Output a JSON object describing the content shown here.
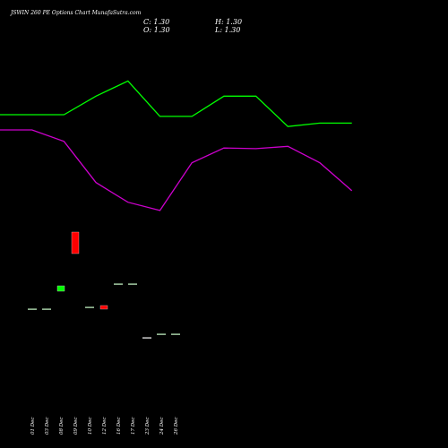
{
  "chart_data": {
    "type": "candlestick",
    "title": "JSWIN 260 PE Options Chart MunafaSutra.com",
    "ohlc_readout": {
      "close": "C: 1.30",
      "open": "O: 1.30",
      "high": "H: 1.30",
      "low": "L: 1.30"
    },
    "categories": [
      "01 Dec",
      "03 Dec",
      "08 Dec",
      "09 Dec",
      "10 Dec",
      "12 Dec",
      "16 Dec",
      "17 Dec",
      "23 Dec",
      "24 Dec",
      "26 Dec"
    ],
    "candles": [
      {
        "date": "01 Dec",
        "open": 2.0,
        "high": 2.0,
        "low": 2.0,
        "close": 2.0,
        "color": "#ccffcc"
      },
      {
        "date": "03 Dec",
        "open": 2.0,
        "high": 2.0,
        "low": 2.0,
        "close": 2.0,
        "color": "#ccffcc"
      },
      {
        "date": "08 Dec",
        "open": 2.5,
        "high": 2.65,
        "low": 2.5,
        "close": 2.65,
        "color": "#00ff00"
      },
      {
        "date": "09 Dec",
        "open": 3.55,
        "high": 4.15,
        "low": 3.55,
        "close": 4.15,
        "color": "#ff0000"
      },
      {
        "date": "10 Dec",
        "open": 2.05,
        "high": 2.05,
        "low": 2.05,
        "close": 2.05,
        "color": "#ccffcc"
      },
      {
        "date": "12 Dec",
        "open": 2.1,
        "high": 2.1,
        "low": 2.0,
        "close": 2.0,
        "color": "#ff0000"
      },
      {
        "date": "16 Dec",
        "open": 2.7,
        "high": 2.7,
        "low": 2.7,
        "close": 2.7,
        "color": "#ccffcc"
      },
      {
        "date": "17 Dec",
        "open": 2.7,
        "high": 2.7,
        "low": 2.7,
        "close": 2.7,
        "color": "#ccffcc"
      },
      {
        "date": "23 Dec",
        "open": 1.2,
        "high": 1.2,
        "low": 1.2,
        "close": 1.2,
        "color": "#ffffff"
      },
      {
        "date": "24 Dec",
        "open": 1.3,
        "high": 1.3,
        "low": 1.3,
        "close": 1.3,
        "color": "#ccffcc"
      },
      {
        "date": "26 Dec",
        "open": 1.3,
        "high": 1.3,
        "low": 1.3,
        "close": 1.3,
        "color": "#ccffcc"
      }
    ],
    "overlay_lines": [
      {
        "color": "#00ff00",
        "x": [
          0,
          1,
          2,
          3,
          4,
          5,
          6,
          7,
          8,
          9,
          10,
          11
        ],
        "y": [
          0.0,
          0.0,
          0.0,
          0.55,
          1.0,
          -0.05,
          -0.05,
          0.55,
          0.55,
          -0.35,
          -0.25,
          -0.25
        ]
      },
      {
        "color": "#cc00cc",
        "x": [
          0,
          1,
          2,
          3,
          4,
          5,
          6,
          7,
          8,
          9,
          10,
          11
        ],
        "y": [
          0.0,
          0.0,
          -0.35,
          -1.6,
          -2.2,
          -2.45,
          -1.0,
          -0.55,
          -0.57,
          -0.5,
          -1.0,
          -1.85
        ]
      }
    ],
    "background": "#000000",
    "grid": false,
    "legend": "none"
  }
}
